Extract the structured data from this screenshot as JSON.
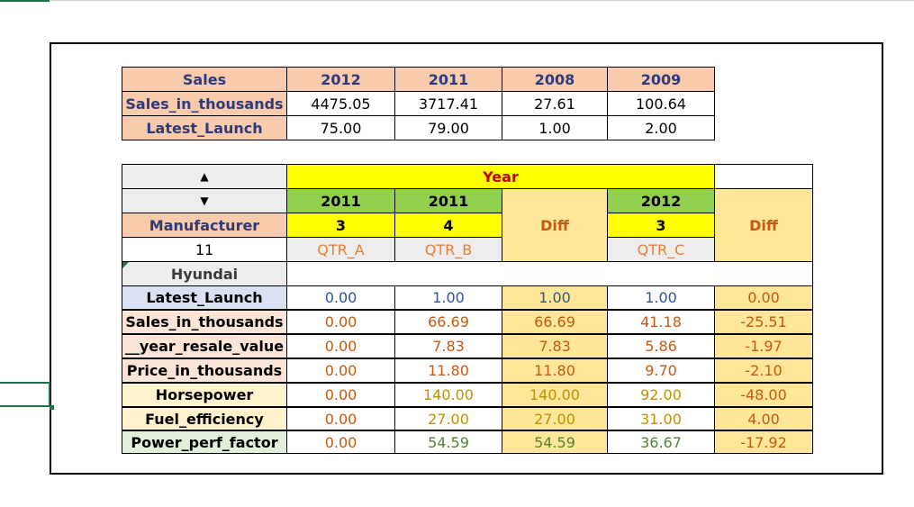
{
  "summary_table": {
    "header": [
      "Sales",
      "2012",
      "2011",
      "2008",
      "2009"
    ],
    "rows": [
      {
        "label": "Sales_in_thousands",
        "values": [
          "4475.05",
          "3717.41",
          "27.61",
          "100.64"
        ]
      },
      {
        "label": "Latest_Launch",
        "values": [
          "75.00",
          "79.00",
          "1.00",
          "2.00"
        ]
      }
    ]
  },
  "pivot": {
    "sort_up_icon": "▲",
    "sort_down_icon": "▼",
    "year_label": "Year",
    "years": [
      "2011",
      "2011",
      "2012"
    ],
    "quarters_num": [
      "3",
      "4",
      "3"
    ],
    "diff_label": "Diff",
    "manufacturer_label": "Manufacturer",
    "count": "11",
    "quarter_labels": [
      "QTR_A",
      "QTR_B",
      "QTR_C"
    ],
    "selected_manufacturer": "Hyundai",
    "metrics": [
      {
        "label": "Latest_Launch",
        "values": [
          "0.00",
          "1.00",
          "1.00",
          "1.00",
          "0.00"
        ]
      },
      {
        "label": "Sales_in_thousands",
        "values": [
          "0.00",
          "66.69",
          "66.69",
          "41.18",
          "-25.51"
        ]
      },
      {
        "label": "__year_resale_value",
        "values": [
          "0.00",
          "7.83",
          "7.83",
          "5.86",
          "-1.97"
        ]
      },
      {
        "label": "Price_in_thousands",
        "values": [
          "0.00",
          "11.80",
          "11.80",
          "9.70",
          "-2.10"
        ]
      },
      {
        "label": "Horsepower",
        "values": [
          "0.00",
          "140.00",
          "140.00",
          "92.00",
          "-48.00"
        ]
      },
      {
        "label": "Fuel_efficiency",
        "values": [
          "0.00",
          "27.00",
          "27.00",
          "31.00",
          "4.00"
        ]
      },
      {
        "label": "Power_perf_factor",
        "values": [
          "0.00",
          "54.59",
          "54.59",
          "36.67",
          "-17.92"
        ]
      }
    ]
  },
  "colors": {
    "peach": "#f8cbad",
    "yellow": "#ffff00",
    "green": "#92d050",
    "diff_fill": "#ffe699",
    "gray": "#ededed",
    "blue_fill": "#d9e1f2",
    "orange_fill": "#fce4d6",
    "light_yellow_fill": "#fff2cc",
    "green_fill": "#e2efda",
    "year_text": "#c00000",
    "qtr_text": "#ed7d31"
  }
}
